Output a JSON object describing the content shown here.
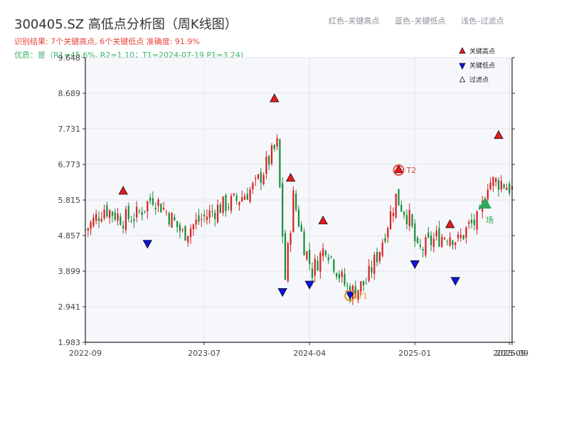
{
  "header": {
    "title": "300405.SZ 高低点分析图（周K线图）",
    "result_line": "识别结果: 7个关键高点, 6个关键低点  准确度: 91.9%",
    "quality_line": "优质：是（R1=45.6%, R2=1.10；T1=2024-07-19 P1=3.24)"
  },
  "top_legend": {
    "red": "红色–关键高点",
    "blue": "蓝色–关键低点",
    "light": "浅色–过滤点"
  },
  "colors": {
    "up": "#d81e1e",
    "down": "#1a8a3c",
    "high_marker": "#e8181e",
    "low_marker": "#1010e0",
    "t1": "#f0962d",
    "t2": "#e8453c",
    "entry": "#2ea85c",
    "plot_bg": "#f5f7fa"
  },
  "chart_data": {
    "type": "candlestick",
    "y_ticks": [
      "1.983",
      "2.941",
      "3.899",
      "4.857",
      "5.815",
      "6.773",
      "7.731",
      "8.689",
      "9.648"
    ],
    "ylim": [
      1.983,
      9.648
    ],
    "x_ticks": [
      {
        "date": "2022-09-02",
        "label": "2022-09"
      },
      {
        "date": "2023-07-07",
        "label": "2023-07"
      },
      {
        "date": "2024-04-05",
        "label": "2024-04"
      },
      {
        "date": "2025-01-03",
        "label": "2025-01"
      },
      {
        "date": "2025-09-05",
        "label": "2025-09"
      },
      {
        "date": "2025-09-12",
        "label": "2025-09"
      }
    ],
    "xlim": [
      "2022-09-02",
      "2025-09-12"
    ],
    "anchors": [
      {
        "date": "2022-09-02",
        "close": 5.0
      },
      {
        "date": "2022-10-21",
        "close": 5.6
      },
      {
        "date": "2022-12-09",
        "close": 5.3
      },
      {
        "date": "2023-01-13",
        "close": 5.4
      },
      {
        "date": "2023-02-24",
        "close": 5.9
      },
      {
        "date": "2023-03-31",
        "close": 5.5
      },
      {
        "date": "2023-05-12",
        "close": 4.9
      },
      {
        "date": "2023-06-16",
        "close": 5.2
      },
      {
        "date": "2023-08-11",
        "close": 5.6
      },
      {
        "date": "2023-09-29",
        "close": 5.8
      },
      {
        "date": "2023-11-17",
        "close": 6.2
      },
      {
        "date": "2024-01-12",
        "close": 7.3
      },
      {
        "date": "2024-02-02",
        "close": 3.7
      },
      {
        "date": "2024-02-23",
        "close": 5.9
      },
      {
        "date": "2024-03-22",
        "close": 4.6
      },
      {
        "date": "2024-04-12",
        "close": 3.9
      },
      {
        "date": "2024-05-17",
        "close": 4.6
      },
      {
        "date": "2024-06-21",
        "close": 3.8
      },
      {
        "date": "2024-07-19",
        "close": 3.3
      },
      {
        "date": "2024-08-30",
        "close": 3.6
      },
      {
        "date": "2024-10-04",
        "close": 4.5
      },
      {
        "date": "2024-11-15",
        "close": 5.9
      },
      {
        "date": "2024-12-20",
        "close": 5.3
      },
      {
        "date": "2025-01-10",
        "close": 4.4
      },
      {
        "date": "2025-02-28",
        "close": 4.8
      },
      {
        "date": "2025-04-04",
        "close": 4.9
      },
      {
        "date": "2025-04-25",
        "close": 4.7
      },
      {
        "date": "2025-05-23",
        "close": 5.1
      },
      {
        "date": "2025-06-20",
        "close": 5.3
      },
      {
        "date": "2025-07-11",
        "close": 6.3
      },
      {
        "date": "2025-08-15",
        "close": 6.3
      },
      {
        "date": "2025-09-12",
        "close": 6.1
      }
    ],
    "key_highs": [
      {
        "date": "2022-12-09",
        "price": 5.95
      },
      {
        "date": "2024-01-05",
        "price": 8.44
      },
      {
        "date": "2024-02-16",
        "price": 6.3
      },
      {
        "date": "2024-05-10",
        "price": 5.15
      },
      {
        "date": "2024-11-22",
        "price": 6.53
      },
      {
        "date": "2025-04-04",
        "price": 5.05
      },
      {
        "date": "2025-08-08",
        "price": 7.45
      }
    ],
    "key_lows": [
      {
        "date": "2023-02-10",
        "price": 4.75
      },
      {
        "date": "2024-01-26",
        "price": 3.45
      },
      {
        "date": "2024-04-05",
        "price": 3.65
      },
      {
        "date": "2024-07-19",
        "price": 3.38
      },
      {
        "date": "2025-01-03",
        "price": 4.2
      },
      {
        "date": "2025-04-18",
        "price": 3.75
      }
    ],
    "annotations": [
      {
        "label": "T1",
        "date": "2024-07-19",
        "price": 3.24
      },
      {
        "label": "T2",
        "date": "2024-11-22",
        "price": 6.62
      }
    ],
    "entry_marker": {
      "label": "场",
      "date": "2025-07-04",
      "price": 5.7
    },
    "legend": [
      {
        "label": "关键高点"
      },
      {
        "label": "关键低点"
      },
      {
        "label": "过滤点"
      }
    ]
  }
}
